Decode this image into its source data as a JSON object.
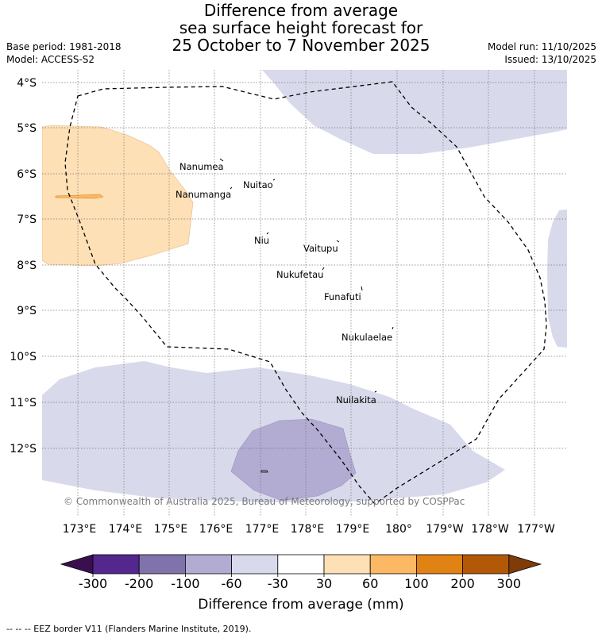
{
  "title": {
    "line1": "Difference from average",
    "line2": "sea surface height forecast for",
    "line3": "25 October to 7 November 2025"
  },
  "meta": {
    "base_period": "Base period: 1981-2018",
    "model": "Model: ACCESS-S2",
    "model_run": "Model run: 11/10/2025",
    "issued": "Issued: 13/10/2025"
  },
  "lat_labels": [
    "4°S",
    "5°S",
    "6°S",
    "7°S",
    "8°S",
    "9°S",
    "10°S",
    "11°S",
    "12°S"
  ],
  "lon_labels": [
    "173°E",
    "174°E",
    "175°E",
    "176°E",
    "177°E",
    "178°E",
    "179°E",
    "180°",
    "179°W",
    "178°W",
    "177°W"
  ],
  "islands": [
    "Nanumea",
    "Nuitao",
    "Nanumanga",
    "Niu",
    "Vaitupu",
    "Nukufetau",
    "Funafuti",
    "Nukulaelae",
    "Nuilakita"
  ],
  "copyright": "© Commonwealth of Australia 2025, Bureau of Meteorology, supported by COSPPac",
  "colorbar": {
    "ticks": [
      "-300",
      "-200",
      "-100",
      "-60",
      "-30",
      "30",
      "60",
      "100",
      "200",
      "300"
    ],
    "colors": {
      "under": "#3b0f4f",
      "c1": "#54278f",
      "c2": "#8073ac",
      "c3": "#b2abd2",
      "c4": "#d8daeb",
      "c5": "#ffffff",
      "c6": "#fee0b6",
      "c7": "#fdb863",
      "c8": "#e08214",
      "c9": "#b35806",
      "over": "#7f3b08"
    },
    "label": "Difference from average (mm)"
  },
  "legend_note": "--  --  -- EEZ border V11 (Flanders Marine Institute, 2019)."
}
